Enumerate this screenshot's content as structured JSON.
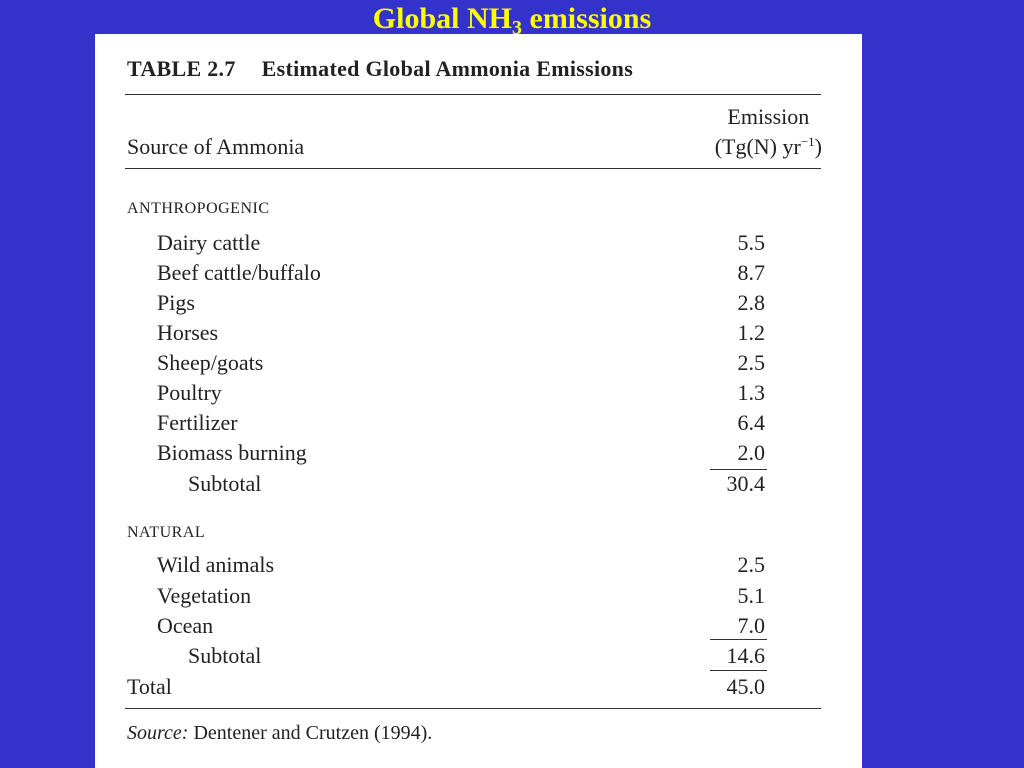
{
  "slide": {
    "title_prefix": "Global NH",
    "title_sub": "3",
    "title_suffix": " emissions"
  },
  "table": {
    "number": "TABLE 2.7",
    "caption": "Estimated Global Ammonia Emissions",
    "col_source": "Source of Ammonia",
    "col_emission_line1": "Emission",
    "col_emission_line2_pre": "(Tg(N) yr",
    "col_emission_line2_sup": "−1",
    "col_emission_line2_post": ")",
    "groups": [
      {
        "heading": "ANTHROPOGENIC",
        "rows": [
          {
            "label": "Dairy cattle",
            "value": "5.5"
          },
          {
            "label": "Beef cattle/buffalo",
            "value": "8.7"
          },
          {
            "label": "Pigs",
            "value": "2.8"
          },
          {
            "label": "Horses",
            "value": "1.2"
          },
          {
            "label": "Sheep/goats",
            "value": "2.5"
          },
          {
            "label": "Poultry",
            "value": "1.3"
          },
          {
            "label": "Fertilizer",
            "value": "6.4"
          },
          {
            "label": "Biomass burning",
            "value": "2.0"
          }
        ],
        "subtotal_label": "Subtotal",
        "subtotal_value": "30.4"
      },
      {
        "heading": "NATURAL",
        "rows": [
          {
            "label": "Wild animals",
            "value": "2.5"
          },
          {
            "label": "Vegetation",
            "value": "5.1"
          },
          {
            "label": "Ocean",
            "value": "7.0"
          }
        ],
        "subtotal_label": "Subtotal",
        "subtotal_value": "14.6"
      }
    ],
    "total_label": "Total",
    "total_value": "45.0",
    "source_label": "Source:",
    "source_text": " Dentener and Crutzen (1994)."
  }
}
